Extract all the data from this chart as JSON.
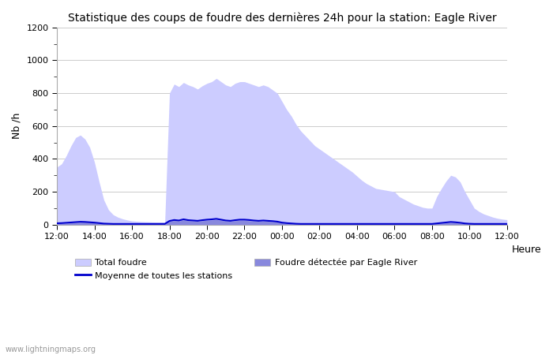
{
  "title": "Statistique des coups de foudre des dernières 24h pour la station: Eagle River",
  "xlabel": "Heure",
  "ylabel": "Nb /h",
  "xlim": [
    0,
    24
  ],
  "ylim": [
    0,
    1200
  ],
  "yticks": [
    0,
    200,
    400,
    600,
    800,
    1000,
    1200
  ],
  "xtick_labels": [
    "12:00",
    "14:00",
    "16:00",
    "18:00",
    "20:00",
    "22:00",
    "00:00",
    "02:00",
    "04:00",
    "06:00",
    "08:00",
    "10:00",
    "12:00"
  ],
  "watermark": "www.lightningmaps.org",
  "legend_total_label": "Total foudre",
  "legend_avg_label": "Moyenne de toutes les stations",
  "legend_local_label": "Foudre détectée par Eagle River",
  "total_color": "#ccccff",
  "local_color": "#8888dd",
  "avg_color": "#0000cc",
  "bg_color": "#ffffff",
  "total_x": [
    0,
    0.25,
    0.5,
    0.75,
    1,
    1.25,
    1.5,
    1.75,
    2,
    2.25,
    2.5,
    2.75,
    3,
    3.25,
    3.5,
    3.75,
    4,
    4.25,
    4.5,
    4.75,
    5,
    5.25,
    5.5,
    5.75,
    6,
    6.25,
    6.5,
    6.75,
    7,
    7.25,
    7.5,
    7.75,
    8,
    8.25,
    8.5,
    8.75,
    9,
    9.25,
    9.5,
    9.75,
    10,
    10.25,
    10.5,
    10.75,
    11,
    11.25,
    11.5,
    11.75,
    12,
    12.25,
    12.5,
    12.75,
    13,
    13.25,
    13.5,
    13.75,
    14,
    14.25,
    14.5,
    14.75,
    15,
    15.25,
    15.5,
    15.75,
    16,
    16.25,
    16.5,
    16.75,
    17,
    17.25,
    17.5,
    17.75,
    18,
    18.25,
    18.5,
    18.75,
    19,
    19.25,
    19.5,
    19.75,
    20,
    20.25,
    20.5,
    20.75,
    21,
    21.25,
    21.5,
    21.75,
    22,
    22.25,
    22.5,
    22.75,
    23,
    23.25,
    23.5,
    23.75,
    24
  ],
  "total_y": [
    350,
    370,
    420,
    480,
    530,
    545,
    520,
    470,
    380,
    260,
    150,
    90,
    60,
    45,
    35,
    28,
    22,
    20,
    18,
    17,
    16,
    15,
    15,
    15,
    800,
    855,
    840,
    865,
    850,
    840,
    825,
    845,
    860,
    870,
    890,
    870,
    850,
    840,
    860,
    870,
    870,
    860,
    850,
    840,
    850,
    840,
    820,
    800,
    750,
    700,
    660,
    610,
    570,
    540,
    510,
    480,
    460,
    440,
    420,
    400,
    380,
    360,
    340,
    320,
    295,
    270,
    250,
    235,
    220,
    215,
    210,
    205,
    200,
    170,
    155,
    140,
    125,
    115,
    105,
    100,
    100,
    170,
    220,
    265,
    300,
    290,
    260,
    200,
    150,
    100,
    80,
    65,
    55,
    45,
    38,
    33,
    30
  ],
  "local_y": [
    5,
    6,
    8,
    10,
    12,
    14,
    14,
    12,
    10,
    7,
    5,
    4,
    3,
    3,
    3,
    3,
    3,
    3,
    3,
    3,
    3,
    3,
    3,
    3,
    20,
    25,
    22,
    28,
    24,
    22,
    20,
    24,
    26,
    28,
    30,
    26,
    22,
    20,
    24,
    26,
    26,
    24,
    22,
    20,
    22,
    20,
    18,
    15,
    10,
    7,
    5,
    4,
    3,
    3,
    3,
    3,
    3,
    3,
    3,
    3,
    3,
    3,
    3,
    3,
    3,
    3,
    3,
    3,
    3,
    3,
    3,
    3,
    3,
    3,
    3,
    3,
    3,
    3,
    3,
    3,
    3,
    5,
    8,
    10,
    12,
    10,
    8,
    5,
    4,
    3,
    3,
    3,
    3,
    3,
    3,
    3,
    3
  ],
  "avg_y": [
    8,
    9,
    11,
    13,
    15,
    17,
    16,
    14,
    12,
    9,
    6,
    5,
    4,
    4,
    4,
    4,
    4,
    4,
    4,
    4,
    4,
    4,
    4,
    4,
    22,
    28,
    25,
    32,
    27,
    25,
    23,
    27,
    30,
    32,
    35,
    30,
    25,
    23,
    27,
    30,
    30,
    28,
    25,
    23,
    25,
    23,
    21,
    18,
    12,
    9,
    7,
    5,
    4,
    4,
    4,
    4,
    4,
    4,
    4,
    4,
    4,
    4,
    4,
    4,
    4,
    4,
    4,
    4,
    4,
    4,
    4,
    4,
    4,
    4,
    4,
    4,
    4,
    4,
    4,
    4,
    4,
    7,
    10,
    13,
    16,
    14,
    11,
    7,
    5,
    4,
    4,
    4,
    4,
    4,
    4,
    4,
    4
  ]
}
